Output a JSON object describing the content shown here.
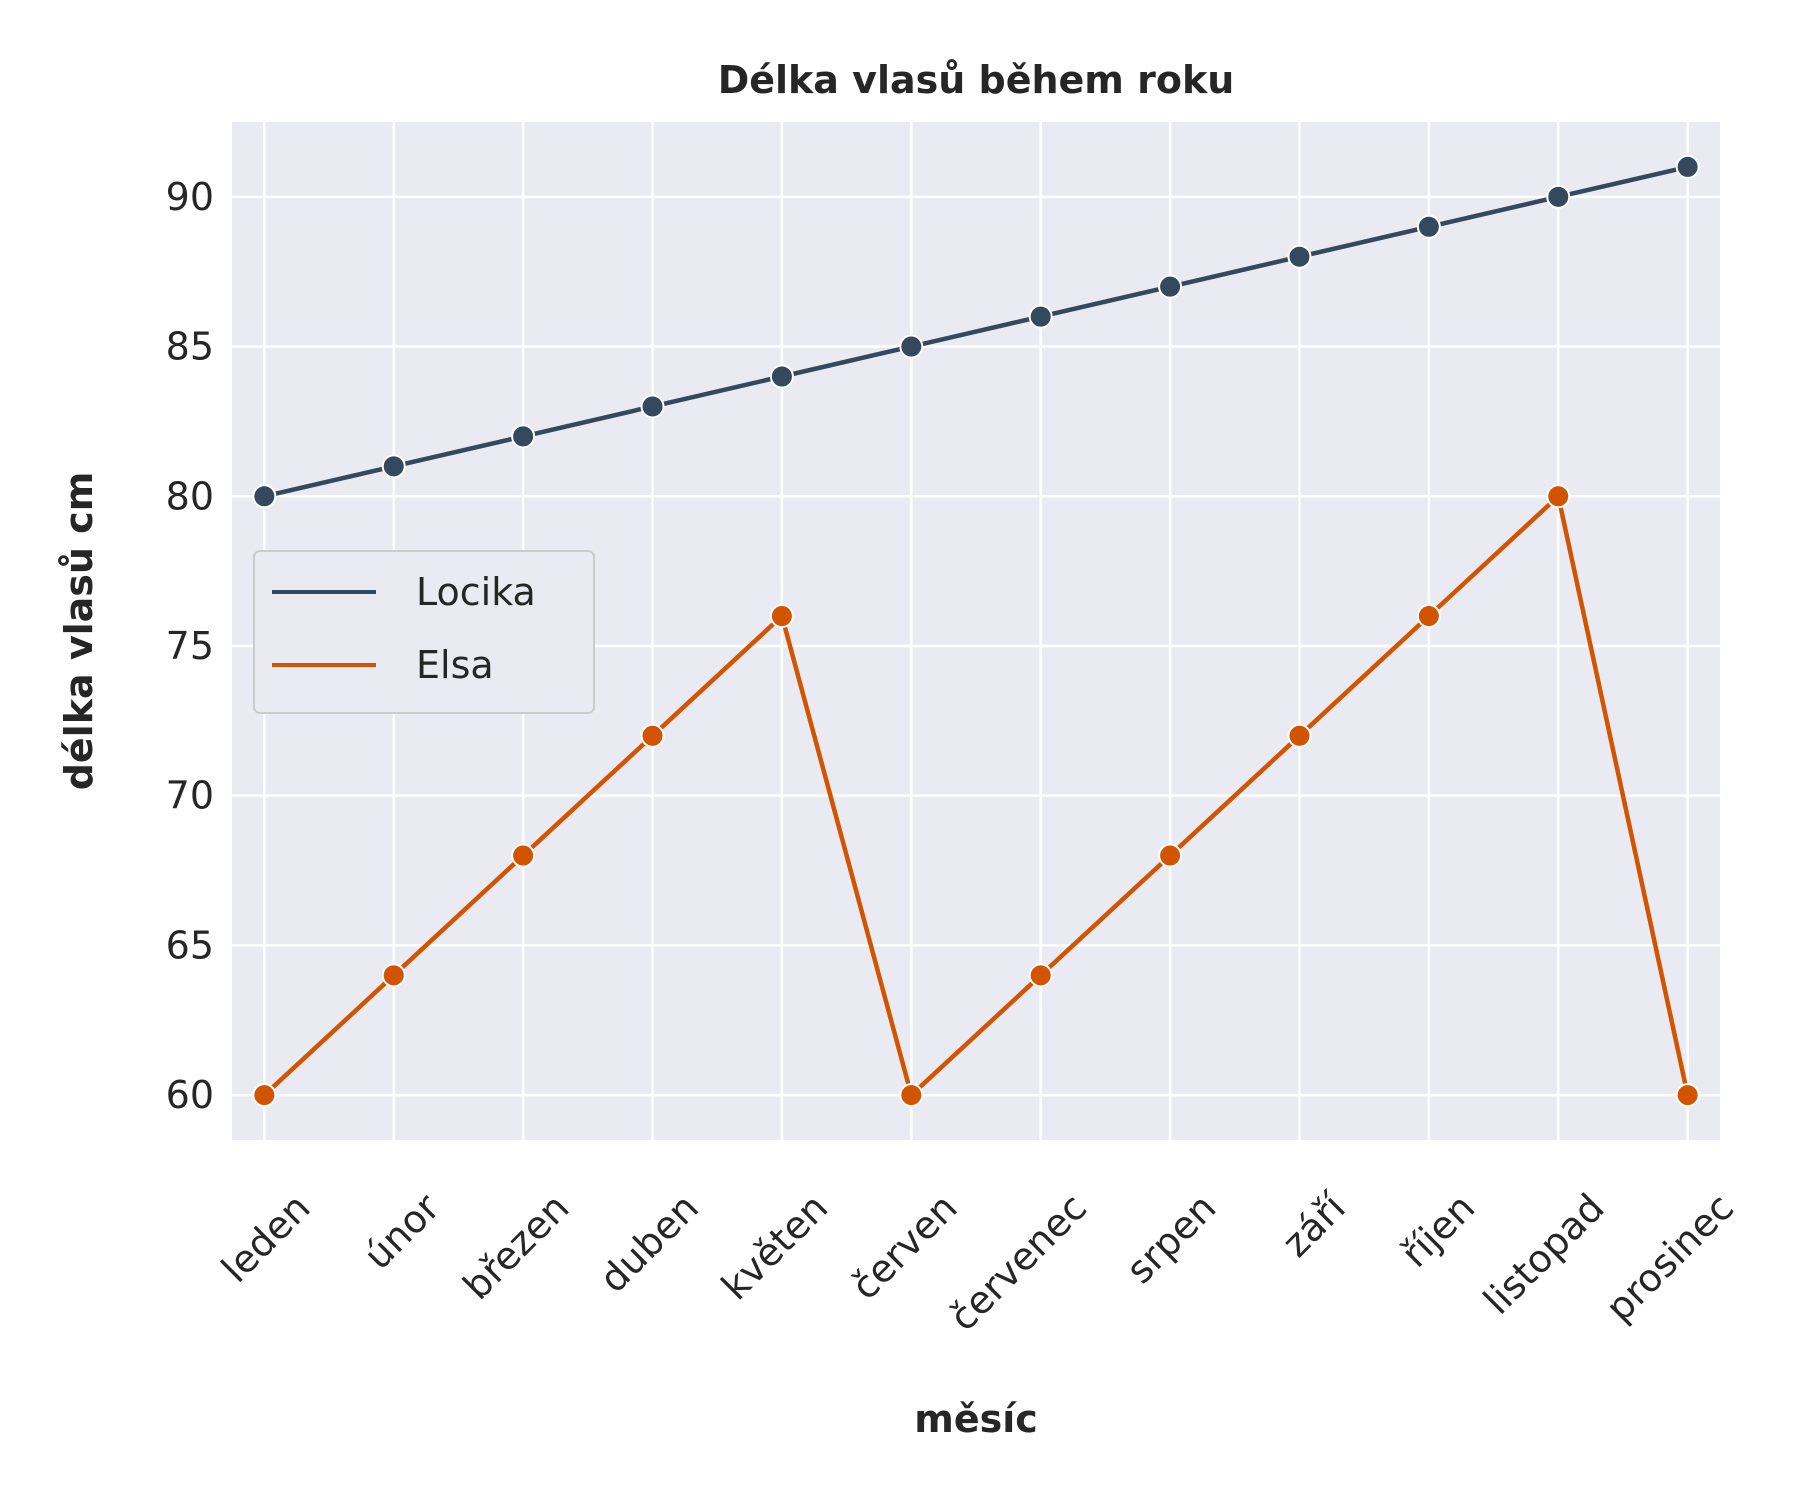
{
  "chart_data": {
    "type": "line",
    "title": "Délka vlasů během roku",
    "xlabel": "měsíc",
    "ylabel": "délka vlasů cm",
    "categories": [
      "leden",
      "únor",
      "březen",
      "duben",
      "květen",
      "červen",
      "červenec",
      "srpen",
      "září",
      "říjen",
      "listopad",
      "prosinec"
    ],
    "yticks": [
      60,
      65,
      70,
      75,
      80,
      85,
      90
    ],
    "ylim": [
      58.5,
      92.5
    ],
    "grid": true,
    "legend_position": "center-left",
    "series": [
      {
        "name": "Locika",
        "color": "#34495e",
        "values": [
          80,
          81,
          82,
          83,
          84,
          85,
          86,
          87,
          88,
          89,
          90,
          91
        ]
      },
      {
        "name": "Elsa",
        "color": "#d35400",
        "values": [
          60,
          64,
          68,
          72,
          76,
          60,
          64,
          68,
          72,
          76,
          80,
          60
        ]
      }
    ],
    "colors": {
      "plot_background": "#eaeaf2",
      "grid": "#ffffff"
    }
  }
}
